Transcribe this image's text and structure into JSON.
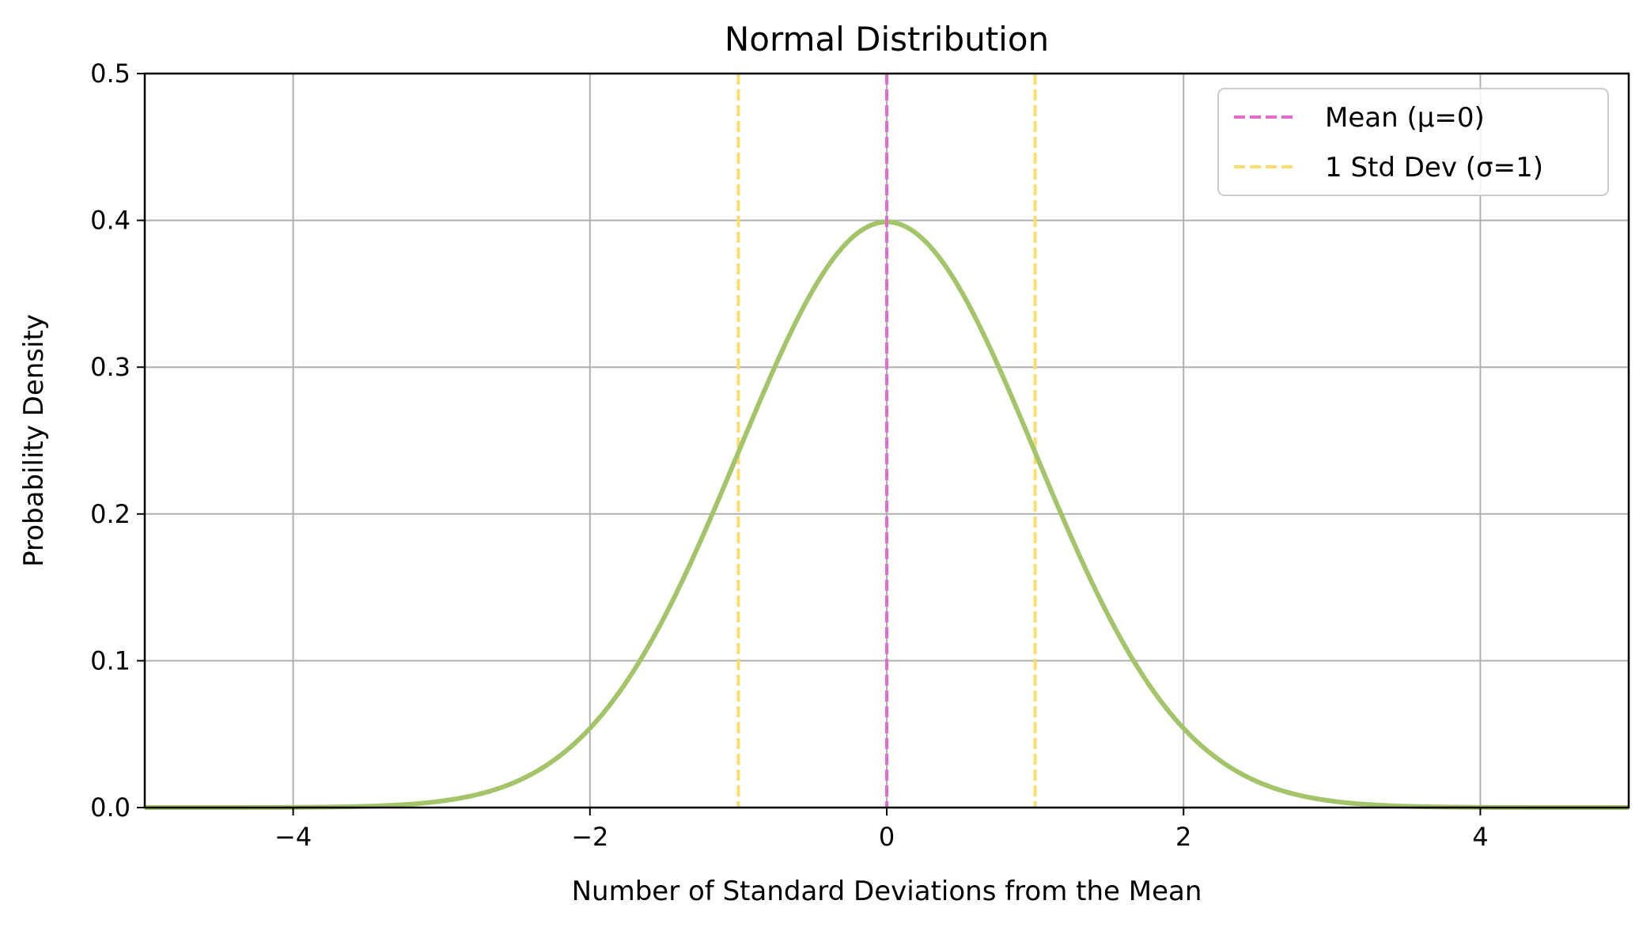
{
  "chart_data": {
    "type": "line",
    "title": "Normal Distribution",
    "xlabel": "Number of Standard Deviations from the Mean",
    "ylabel": "Probability Density",
    "xlim": [
      -5,
      5
    ],
    "ylim": [
      0,
      0.5
    ],
    "grid": true,
    "legend_position": "top-right",
    "x_ticks": [
      -4,
      -2,
      0,
      2,
      4
    ],
    "x_tick_labels": [
      "−4",
      "−2",
      "0",
      "2",
      "4"
    ],
    "y_ticks": [
      0.0,
      0.1,
      0.2,
      0.3,
      0.4,
      0.5
    ],
    "y_tick_labels": [
      "0.0",
      "0.1",
      "0.2",
      "0.3",
      "0.4",
      "0.5"
    ],
    "series": [
      {
        "kind": "curve",
        "color": "#a4c46a",
        "x": [
          -5.0,
          -4.5,
          -4.0,
          -3.5,
          -3.0,
          -2.5,
          -2.0,
          -1.75,
          -1.5,
          -1.25,
          -1.0,
          -0.75,
          -0.5,
          -0.25,
          0.0,
          0.25,
          0.5,
          0.75,
          1.0,
          1.25,
          1.5,
          1.75,
          2.0,
          2.5,
          3.0,
          3.5,
          4.0,
          4.5,
          5.0
        ],
        "values": [
          0.0,
          0.0,
          0.0001,
          0.0009,
          0.0044,
          0.0175,
          0.054,
          0.0863,
          0.1295,
          0.1826,
          0.242,
          0.3011,
          0.3521,
          0.3867,
          0.3989,
          0.3867,
          0.3521,
          0.3011,
          0.242,
          0.1826,
          0.1295,
          0.0863,
          0.054,
          0.0175,
          0.0044,
          0.0009,
          0.0001,
          0.0,
          0.0
        ]
      }
    ],
    "vlines": [
      {
        "name": "Mean (μ=0)",
        "x": 0,
        "color": "#e36bcb",
        "dash": "dashed"
      },
      {
        "name": "1 Std Dev (σ=1)",
        "x": -1,
        "color": "#fddc6e",
        "dash": "dashed"
      },
      {
        "name": "",
        "x": 1,
        "color": "#fddc6e",
        "dash": "dashed"
      }
    ],
    "legend": [
      {
        "label": "Mean (μ=0)",
        "color": "#e36bcb"
      },
      {
        "label": "1 Std Dev (σ=1)",
        "color": "#fddc6e"
      }
    ],
    "colors": {
      "grid": "#b0b0b0",
      "axes": "#000000"
    }
  }
}
